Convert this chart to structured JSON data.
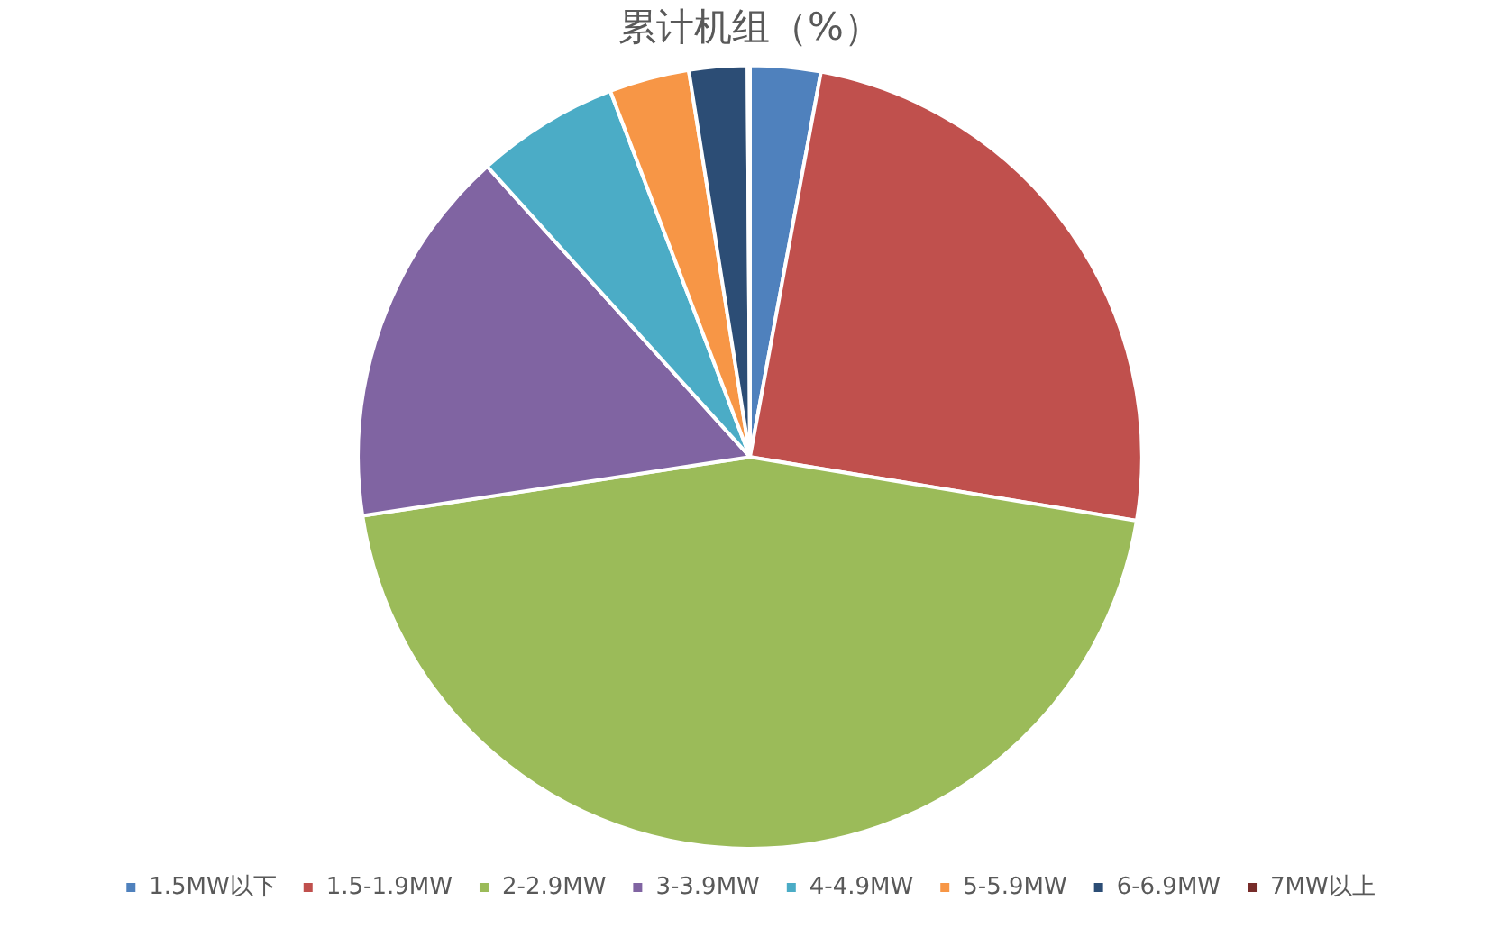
{
  "chart_data": {
    "type": "pie",
    "title": "累计机组（%）",
    "categories": [
      "1.5MW以下",
      "1.5-1.9MW",
      "2-2.9MW",
      "3-3.9MW",
      "4-4.9MW",
      "5-5.9MW",
      "6-6.9MW",
      "7MW以上"
    ],
    "values": [
      2.9,
      24.7,
      45.0,
      15.7,
      5.9,
      3.3,
      2.4,
      0.1
    ],
    "colors": [
      "#4f81bd",
      "#c0504d",
      "#9bbb59",
      "#8064a2",
      "#4bacc6",
      "#f79646",
      "#2c4d75",
      "#772c2a"
    ],
    "legend": "bottom"
  }
}
